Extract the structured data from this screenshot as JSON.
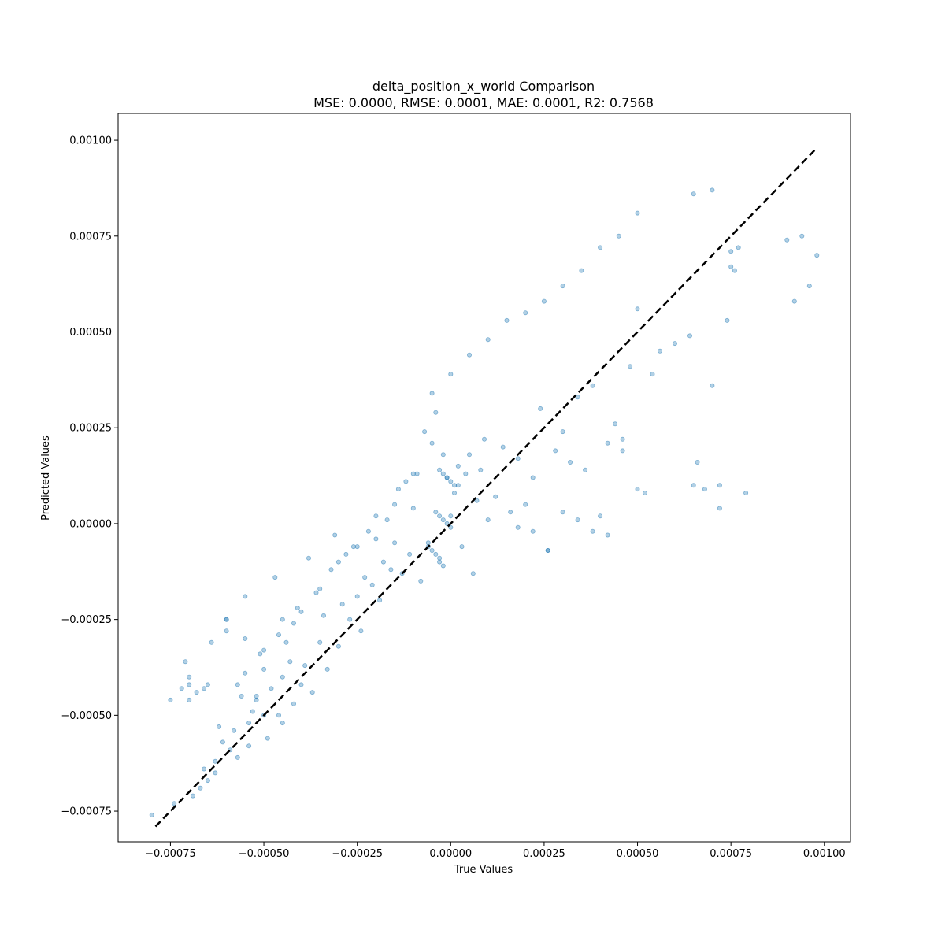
{
  "chart_data": {
    "type": "scatter",
    "title": "delta_position_x_world Comparison",
    "subtitle": "MSE: 0.0000, RMSE: 0.0001, MAE: 0.0001, R2: 0.7568",
    "xlabel": "True Values",
    "ylabel": "Predicted Values",
    "xlim": [
      -0.00089,
      0.00107
    ],
    "ylim": [
      -0.00083,
      0.00107
    ],
    "xticks": [
      -0.00075,
      -0.0005,
      -0.00025,
      0.0,
      0.00025,
      0.0005,
      0.00075,
      0.001
    ],
    "xtick_labels": [
      "−0.00075",
      "−0.00050",
      "−0.00025",
      "0.00000",
      "0.00025",
      "0.00050",
      "0.00075",
      "0.00100"
    ],
    "yticks": [
      -0.00075,
      -0.0005,
      -0.00025,
      0.0,
      0.00025,
      0.0005,
      0.00075,
      0.001
    ],
    "ytick_labels": [
      "−0.00075",
      "−0.00050",
      "−0.00025",
      "0.00000",
      "0.00025",
      "0.00050",
      "0.00075",
      "0.00100"
    ],
    "grid": false,
    "point_color": "#1f77b4",
    "point_alpha": 0.35,
    "reference_line": {
      "style": "dashed",
      "color": "#000000",
      "from": [
        -0.00079,
        -0.00079
      ],
      "to": [
        0.00098,
        0.00098
      ]
    },
    "x": [
      -0.0008,
      -0.00075,
      -0.00074,
      -0.00072,
      -0.00071,
      -0.0007,
      -0.0007,
      -0.00069,
      -0.00068,
      -0.00067,
      -0.00066,
      -0.00066,
      -0.00065,
      -0.00064,
      -0.00063,
      -0.00063,
      -0.00062,
      -0.00061,
      -0.0006,
      -0.0006,
      -0.00059,
      -0.00058,
      -0.00057,
      -0.00057,
      -0.00056,
      -0.00055,
      -0.00055,
      -0.00054,
      -0.00054,
      -0.00053,
      -0.00052,
      -0.00052,
      -0.00051,
      -0.0005,
      -0.0005,
      -0.00049,
      -0.00048,
      -0.00047,
      -0.00046,
      -0.00046,
      -0.00045,
      -0.00045,
      -0.00044,
      -0.00043,
      -0.00042,
      -0.00042,
      -0.00041,
      -0.0004,
      -0.00039,
      -0.00038,
      -0.00037,
      -0.00036,
      -0.00035,
      -0.00034,
      -0.00033,
      -0.00032,
      -0.00031,
      -0.0003,
      -0.00029,
      -0.00028,
      -0.00027,
      -0.00026,
      -0.00025,
      -0.00024,
      -0.00023,
      -0.00022,
      -0.00021,
      -0.0002,
      -0.00019,
      -0.00018,
      -0.00017,
      -0.00016,
      -0.00015,
      -0.00014,
      -0.00013,
      -0.00012,
      -0.00011,
      -0.0001,
      -9e-05,
      -8e-05,
      -7e-05,
      -6e-05,
      -5e-05,
      -4e-05,
      -3e-05,
      -2e-05,
      -1e-05,
      0.0,
      1e-05,
      2e-05,
      3e-05,
      4e-05,
      5e-05,
      6e-05,
      7e-05,
      8e-05,
      9e-05,
      0.0001,
      0.00012,
      0.00014,
      0.00016,
      0.00018,
      0.0002,
      0.00022,
      0.00024,
      0.00026,
      0.00028,
      0.0003,
      0.00032,
      0.00034,
      0.00036,
      0.00038,
      0.0004,
      0.00042,
      0.00044,
      0.00046,
      0.00048,
      0.0005,
      0.00052,
      0.00054,
      0.00056,
      0.0006,
      0.00064,
      0.00066,
      0.00068,
      0.0007,
      0.00072,
      0.00074,
      0.00075,
      0.00077,
      0.00079,
      0.0009,
      0.00092,
      0.00094,
      0.00096,
      0.00098,
      -0.0007,
      -0.00065,
      -0.0006,
      -0.00055,
      -0.0005,
      -0.00045,
      -0.0004,
      -0.00035,
      -0.0003,
      -0.00025,
      -0.0002,
      -0.00015,
      -0.0001,
      -5e-05,
      0.0,
      5e-05,
      0.0001,
      0.00015,
      0.0002,
      0.00025,
      0.0003,
      0.00035,
      0.0004,
      0.00045,
      0.0005,
      0.00065,
      0.0007,
      0.00075,
      -3e-05,
      -2e-05,
      -1e-05,
      0.0,
      1e-05,
      2e-05,
      -4e-05,
      -3e-05,
      -2e-05,
      -1e-05,
      0.0,
      -6e-05,
      -5e-05,
      -4e-05,
      -3e-05,
      -2e-05,
      0.00018,
      0.00022,
      0.00026,
      0.0003,
      0.00034,
      0.00038,
      0.00042,
      0.00046,
      0.0005,
      0.00065,
      0.00072,
      0.00076
    ],
    "y": [
      -0.00076,
      -0.00046,
      -0.00073,
      -0.00043,
      -0.00036,
      -0.00042,
      -0.00046,
      -0.00071,
      -0.00044,
      -0.00069,
      -0.00064,
      -0.00043,
      -0.00067,
      -0.00031,
      -0.00065,
      -0.00062,
      -0.00053,
      -0.00057,
      -0.00028,
      -0.00025,
      -0.00059,
      -0.00054,
      -0.00061,
      -0.00042,
      -0.00045,
      -0.00039,
      -0.00019,
      -0.00052,
      -0.00058,
      -0.00049,
      -0.00045,
      -0.00046,
      -0.00034,
      -0.0005,
      -0.00038,
      -0.00056,
      -0.00043,
      -0.00014,
      -0.0005,
      -0.00029,
      -0.0004,
      -0.00052,
      -0.00031,
      -0.00036,
      -0.00047,
      -0.00026,
      -0.00022,
      -0.00042,
      -0.00037,
      -9e-05,
      -0.00044,
      -0.00018,
      -0.00031,
      -0.00024,
      -0.00038,
      -0.00012,
      -3e-05,
      -0.00032,
      -0.00021,
      -8e-05,
      -0.00025,
      -6e-05,
      -0.00019,
      -0.00028,
      -0.00014,
      -2e-05,
      -0.00016,
      -4e-05,
      -0.0002,
      -0.0001,
      1e-05,
      -0.00012,
      -5e-05,
      9e-05,
      -0.00013,
      0.00011,
      -8e-05,
      4e-05,
      0.00013,
      -0.00015,
      0.00024,
      -6e-05,
      0.00034,
      0.00029,
      -9e-05,
      0.00018,
      0.00012,
      2e-05,
      8e-05,
      0.00015,
      -6e-05,
      0.00013,
      0.00018,
      -0.00013,
      6e-05,
      0.00014,
      0.00022,
      1e-05,
      7e-05,
      0.0002,
      3e-05,
      0.00017,
      5e-05,
      0.00012,
      0.0003,
      -7e-05,
      0.00019,
      0.00024,
      0.00016,
      0.00033,
      0.00014,
      0.00036,
      2e-05,
      0.00021,
      0.00026,
      0.00022,
      0.00041,
      0.00056,
      8e-05,
      0.00039,
      0.00045,
      0.00047,
      0.00049,
      0.00016,
      9e-05,
      0.00036,
      0.0001,
      0.00053,
      0.00071,
      0.00072,
      8e-05,
      0.00074,
      0.00058,
      0.00075,
      0.00062,
      0.0007,
      -0.0004,
      -0.00042,
      -0.00025,
      -0.0003,
      -0.00033,
      -0.00025,
      -0.00023,
      -0.00017,
      -0.0001,
      -6e-05,
      2e-05,
      5e-05,
      0.00013,
      0.00021,
      0.00039,
      0.00044,
      0.00048,
      0.00053,
      0.00055,
      0.00058,
      0.00062,
      0.00066,
      0.00072,
      0.00075,
      0.00081,
      0.00086,
      0.00087,
      0.00067,
      0.00014,
      0.00013,
      0.00012,
      0.00011,
      0.0001,
      0.0001,
      3e-05,
      2e-05,
      1e-05,
      0.0,
      -1e-05,
      -5e-05,
      -7e-05,
      -8e-05,
      -0.0001,
      -0.00011,
      -1e-05,
      -2e-05,
      -7e-05,
      3e-05,
      1e-05,
      -2e-05,
      -3e-05,
      0.00019,
      9e-05,
      0.0001,
      4e-05,
      0.00066
    ]
  }
}
